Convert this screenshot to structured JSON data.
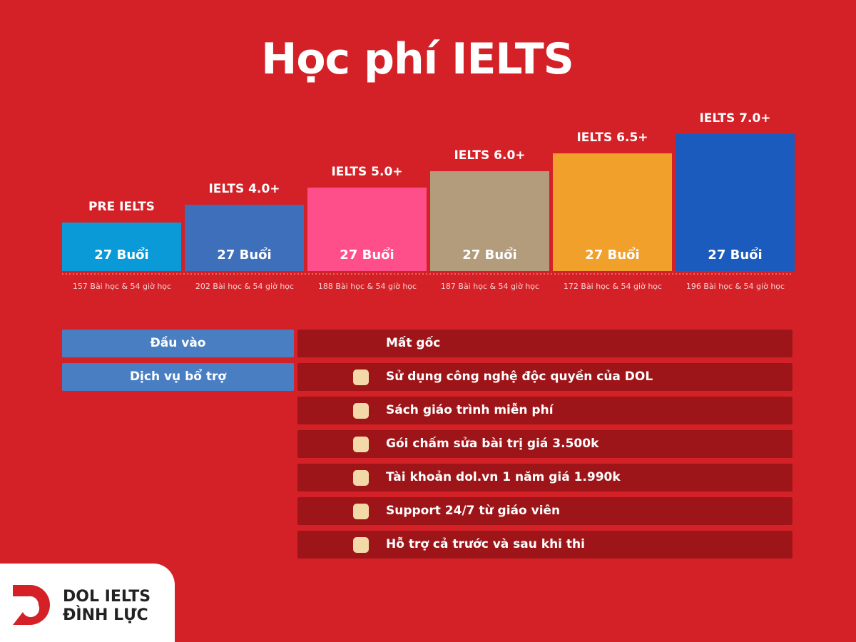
{
  "header": {
    "title": "Học phí IELTS"
  },
  "levels": [
    {
      "label": "PRE IELTS",
      "sessions": "27 Buổi",
      "lessons": "157 Bài học & 54 giờ học"
    },
    {
      "label": "IELTS 4.0+",
      "sessions": "27 Buổi",
      "lessons": "202 Bài học & 54 giờ học"
    },
    {
      "label": "IELTS 5.0+",
      "sessions": "27 Buổi",
      "lessons": "188 Bài học & 54 giờ học"
    },
    {
      "label": "IELTS 6.0+",
      "sessions": "27 Buổi",
      "lessons": "187 Bài học & 54 giờ học"
    },
    {
      "label": "IELTS 6.5+",
      "sessions": "27 Buổi",
      "lessons": "172 Bài học & 54 giờ học"
    },
    {
      "label": "IELTS 7.0+",
      "sessions": "27 Buổi",
      "lessons": "196 Bài học & 54 giờ học"
    }
  ],
  "table": {
    "entry_label": "Đầu vào",
    "entry_value": "Mất gốc",
    "services_label": "Dịch vụ bổ trợ",
    "services": [
      "Sử dụng công nghệ độc quyền của DOL",
      "Sách giáo trình miễn phí",
      "Gói chấm sửa bài trị giá 3.500k",
      "Tài khoản dol.vn 1 năm giá 1.990k",
      "Support 24/7 từ giáo viên",
      "Hỗ trợ cả trước và sau khi thi"
    ]
  },
  "logo": {
    "line1": "DOL IELTS",
    "line2": "ĐÌNH LỰC"
  }
}
